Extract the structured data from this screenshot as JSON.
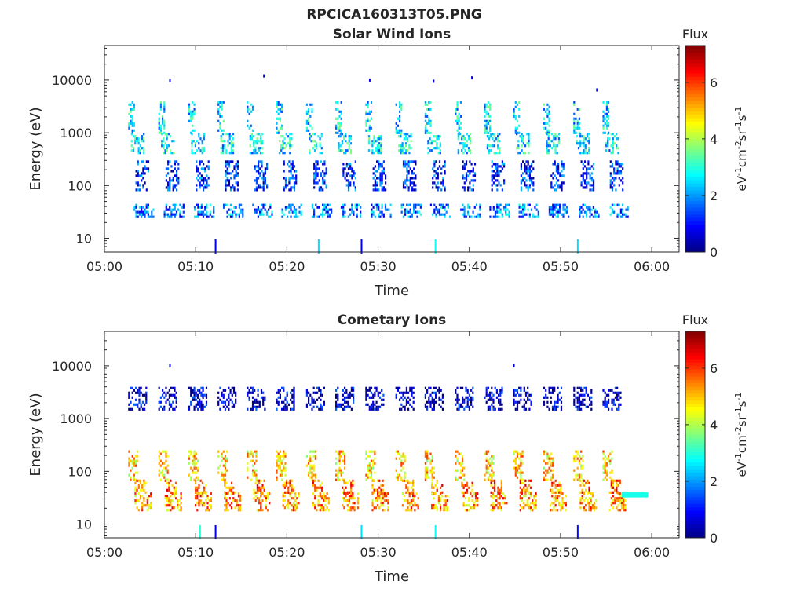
{
  "figure": {
    "title": "RPCICA160313T05.PNG"
  },
  "colorbar_label": {
    "prefix": "eV",
    "sup1": "-1",
    "mid1": "cm",
    "sup2": "-2",
    "mid2": "sr",
    "sup3": "-1",
    "mid3": "s",
    "sup4": "-1"
  },
  "colors": {
    "axis": "#262626",
    "background": "#ffffff",
    "colormap": "jet"
  },
  "chart_data": [
    {
      "type": "heatmap",
      "title": "Solar Wind Ions",
      "xlabel": "Time",
      "ylabel": "Energy (eV)",
      "x_tick_labels": [
        "05:00",
        "05:10",
        "05:20",
        "05:30",
        "05:40",
        "05:50",
        "06:00"
      ],
      "x_range_minutes": [
        0,
        63
      ],
      "y_scale": "log",
      "y_range": [
        5.5,
        45000
      ],
      "y_ticks": [
        10,
        100,
        1000,
        10000
      ],
      "y_tick_labels": [
        "10",
        "100",
        "1000",
        "10000"
      ],
      "colorbar": {
        "title": "Flux",
        "range": [
          0,
          7.3
        ],
        "ticks": [
          0,
          2,
          4,
          6
        ]
      },
      "sweep_start_minutes": [
        2.6,
        5.9,
        9.2,
        12.4,
        15.6,
        18.8,
        22.1,
        25.3,
        28.6,
        31.9,
        35.1,
        38.4,
        41.6,
        44.8,
        48.1,
        51.4,
        54.6
      ],
      "sweep_blobs": [
        {
          "energy_range": [
            1000,
            4000
          ],
          "offset": [
            0,
            0.7
          ],
          "flux": 2.5
        },
        {
          "energy_range": [
            400,
            1000
          ],
          "offset": [
            0.3,
            1.8
          ],
          "flux": 2.6
        },
        {
          "energy_range": [
            80,
            300
          ],
          "offset": [
            0.8,
            2.2
          ],
          "flux": 1.2
        },
        {
          "energy_range": [
            25,
            45
          ],
          "offset": [
            0.6,
            2.7
          ],
          "flux": 1.8
        }
      ],
      "isolated_points": [
        {
          "t": 12.1,
          "e": 7,
          "flux": 0.8
        },
        {
          "t": 23.4,
          "e": 7,
          "flux": 2.5
        },
        {
          "t": 28.1,
          "e": 7,
          "flux": 0.8
        },
        {
          "t": 36.2,
          "e": 7,
          "flux": 2.8
        },
        {
          "t": 51.8,
          "e": 7,
          "flux": 2.5
        },
        {
          "t": 17.4,
          "e": 12000,
          "flux": 0.5
        },
        {
          "t": 29.0,
          "e": 10000,
          "flux": 0.8
        },
        {
          "t": 36.0,
          "e": 9500,
          "flux": 0.7
        },
        {
          "t": 40.2,
          "e": 11000,
          "flux": 0.6
        },
        {
          "t": 7.1,
          "e": 9800,
          "flux": 0.6
        },
        {
          "t": 53.9,
          "e": 6500,
          "flux": 0.9
        }
      ]
    },
    {
      "type": "heatmap",
      "title": "Cometary Ions",
      "xlabel": "Time",
      "ylabel": "Energy (eV)",
      "x_tick_labels": [
        "05:00",
        "05:10",
        "05:20",
        "05:30",
        "05:40",
        "05:50",
        "06:00"
      ],
      "x_range_minutes": [
        0,
        63
      ],
      "y_scale": "log",
      "y_range": [
        5.5,
        45000
      ],
      "y_ticks": [
        10,
        100,
        1000,
        10000
      ],
      "y_tick_labels": [
        "10",
        "100",
        "1000",
        "10000"
      ],
      "colorbar": {
        "title": "Flux",
        "range": [
          0,
          7.3
        ],
        "ticks": [
          0,
          2,
          4,
          6
        ]
      },
      "sweep_start_minutes": [
        2.6,
        5.9,
        9.2,
        12.4,
        15.6,
        18.8,
        22.1,
        25.3,
        28.6,
        31.9,
        35.1,
        38.4,
        41.6,
        44.8,
        48.1,
        51.4,
        54.6
      ],
      "sweep_blobs": [
        {
          "energy_range": [
            1500,
            4000
          ],
          "offset": [
            0,
            2.0
          ],
          "flux": 0.5
        },
        {
          "energy_range": [
            70,
            250
          ],
          "offset": [
            0,
            1.0
          ],
          "flux": 4.8
        },
        {
          "energy_range": [
            40,
            70
          ],
          "offset": [
            0.7,
            2.0
          ],
          "flux": 5.6
        },
        {
          "energy_range": [
            18,
            40
          ],
          "offset": [
            0.7,
            2.5
          ],
          "flux": 5.3
        }
      ],
      "band": {
        "t_range": [
          56.7,
          59.6
        ],
        "energy_range": [
          32,
          40
        ],
        "flux": 2.9
      },
      "isolated_points": [
        {
          "t": 10.4,
          "e": 7,
          "flux": 3.0
        },
        {
          "t": 12.1,
          "e": 7,
          "flux": 0.8
        },
        {
          "t": 28.1,
          "e": 7,
          "flux": 2.5
        },
        {
          "t": 36.2,
          "e": 7,
          "flux": 2.8
        },
        {
          "t": 51.8,
          "e": 7,
          "flux": 1.0
        },
        {
          "t": 7.1,
          "e": 10000,
          "flux": 0.6
        },
        {
          "t": 44.8,
          "e": 10000,
          "flux": 0.6
        }
      ]
    }
  ]
}
